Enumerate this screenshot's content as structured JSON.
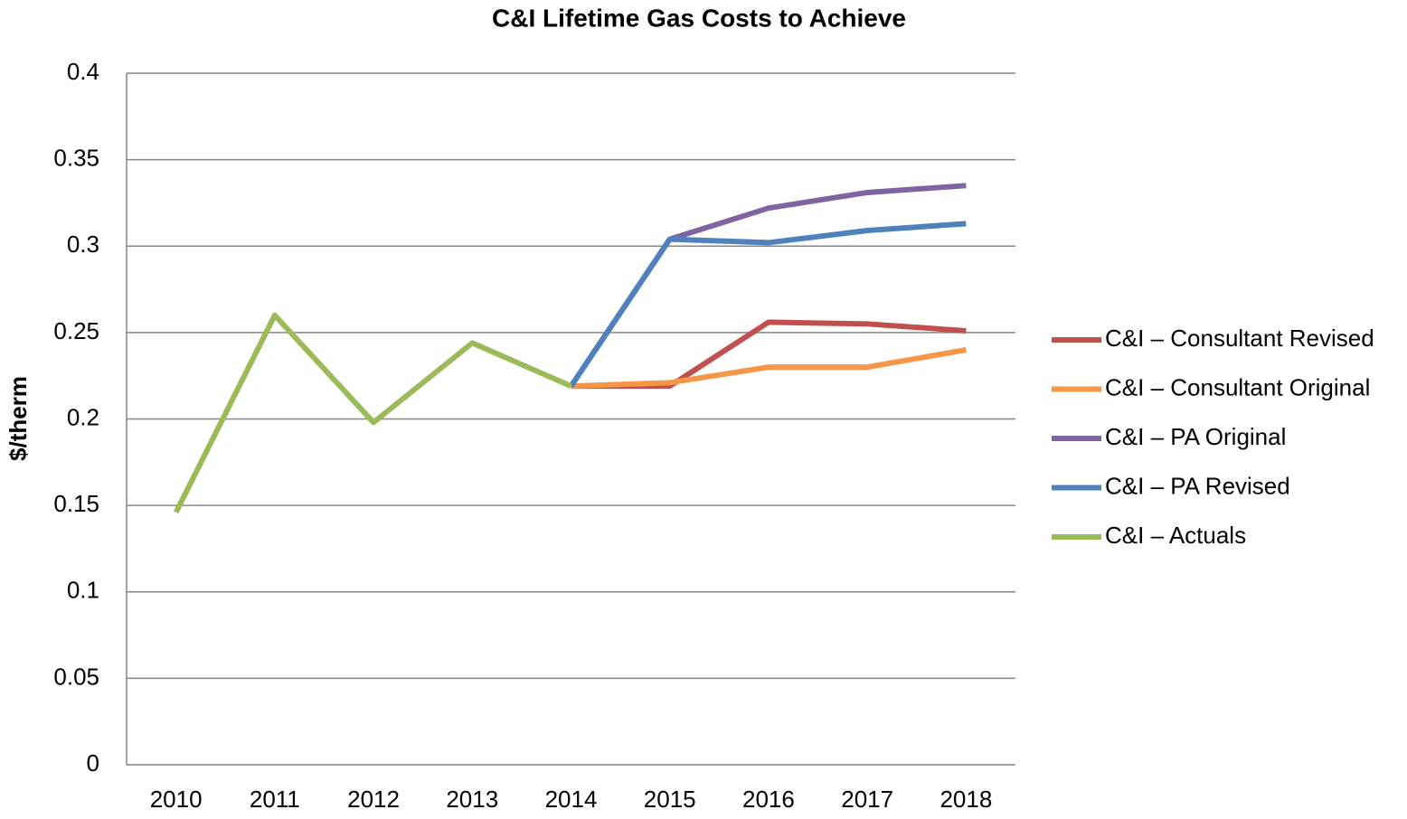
{
  "chart_data": {
    "type": "line",
    "title": "C&I Lifetime Gas Costs to Achieve",
    "y_label": "$/therm",
    "categories": [
      "2010",
      "2011",
      "2012",
      "2013",
      "2014",
      "2015",
      "2016",
      "2017",
      "2018"
    ],
    "series": [
      {
        "name": "C&I – Consultant Revised",
        "color": "#c0504d",
        "values": [
          null,
          null,
          null,
          null,
          0.219,
          0.219,
          0.256,
          0.255,
          0.251
        ]
      },
      {
        "name": "C&I – Consultant Original",
        "color": "#f79646",
        "values": [
          null,
          null,
          null,
          null,
          0.219,
          0.221,
          0.23,
          0.23,
          0.24
        ]
      },
      {
        "name": "C&I – PA Original",
        "color": "#8064a2",
        "values": [
          null,
          null,
          null,
          null,
          0.219,
          0.304,
          0.322,
          0.331,
          0.335
        ]
      },
      {
        "name": "C&I – PA Revised",
        "color": "#4f81bd",
        "values": [
          null,
          null,
          null,
          null,
          0.219,
          0.304,
          0.302,
          0.309,
          0.313
        ]
      },
      {
        "name": "C&I – Actuals",
        "color": "#9bbb59",
        "values": [
          0.146,
          0.26,
          0.198,
          0.244,
          0.219,
          null,
          null,
          null,
          null
        ]
      }
    ],
    "ylim": [
      0,
      0.4
    ],
    "yticks": [
      0,
      0.05,
      0.1,
      0.15,
      0.2,
      0.25,
      0.3,
      0.35,
      0.4
    ],
    "grid": true,
    "legend": "right"
  }
}
